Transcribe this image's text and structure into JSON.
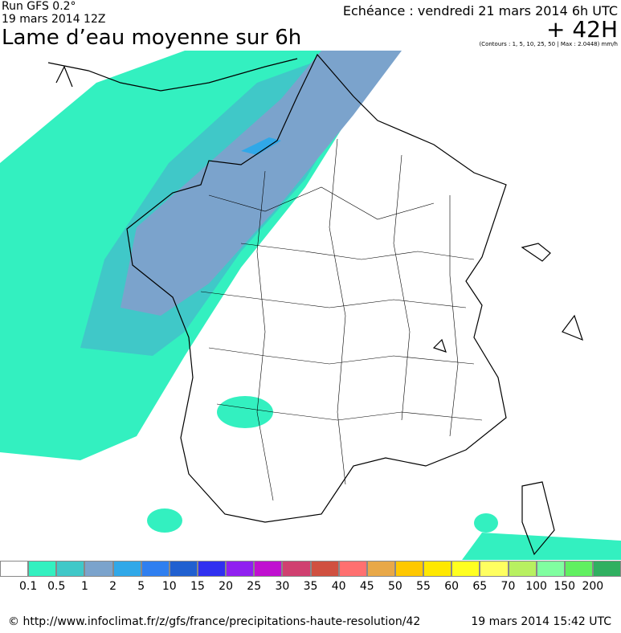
{
  "header": {
    "run": "Run GFS 0.2°",
    "date": "19 mars 2014 12Z",
    "title": "Lame d’eau moyenne sur 6h",
    "echeance": "Echéance : vendredi 21 mars 2014 6h UTC",
    "lead": "+ 42H",
    "note": "(Contours : 1, 5, 10, 25, 50 | Max : 2.0448) mm/h"
  },
  "legend": {
    "colors": [
      "#ffffff",
      "#33f0c0",
      "#40c8c8",
      "#7ba3cc",
      "#30a8e8",
      "#2f7ff0",
      "#2060d0",
      "#3030f0",
      "#9020f0",
      "#c010d0",
      "#d04070",
      "#d05040",
      "#ff7070",
      "#e8a848",
      "#ffc800",
      "#ffe800",
      "#ffff20",
      "#ffff60",
      "#b8f060",
      "#80ffa0",
      "#60f060",
      "#30b060"
    ],
    "levels": [
      "0.1",
      "0.5",
      "1",
      "2",
      "5",
      "10",
      "15",
      "20",
      "25",
      "30",
      "35",
      "40",
      "45",
      "50",
      "55",
      "60",
      "65",
      "70",
      "100",
      "150",
      "200"
    ]
  },
  "footer": {
    "source": "© http://www.infoclimat.fr/z/gfs/france/precipitations-haute-resolution/42",
    "timestamp": "19 mars 2014 15:42 UTC"
  }
}
